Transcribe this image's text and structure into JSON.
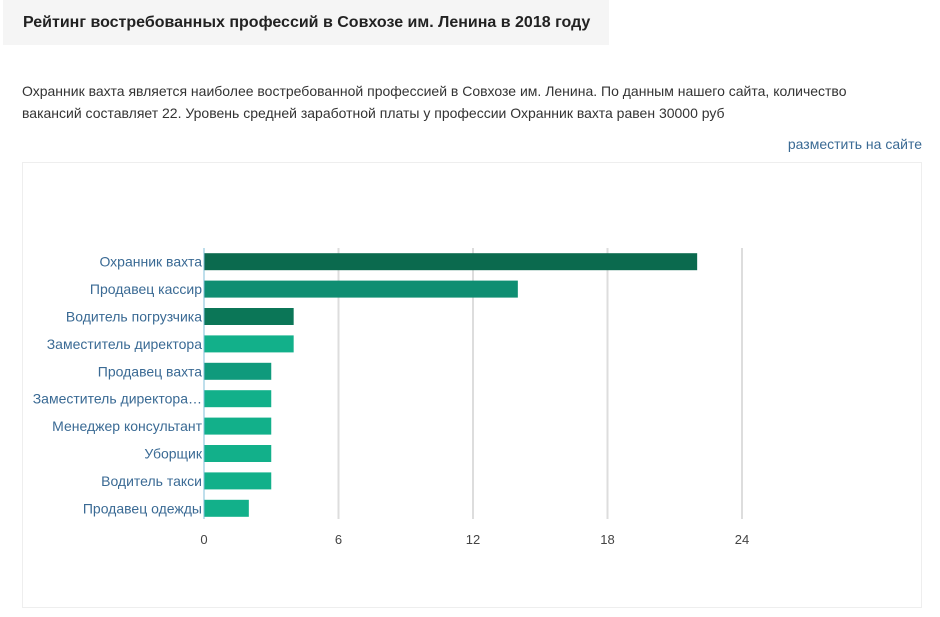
{
  "header": {
    "title": "Рейтинг востребованных профессий в Совхозе им. Ленина в 2018 году"
  },
  "intro": {
    "text": "Охранник вахта является наиболее востребованной профессией в Совхозе им. Ленина. По данным нашего сайта, количество вакансий составляет 22. Уровень средней заработной платы у профессии Охранник вахта равен 30000 руб"
  },
  "embed_link": {
    "label": "разместить на сайте"
  },
  "chart_data": {
    "type": "bar",
    "orientation": "horizontal",
    "categories": [
      "Охранник вахта",
      "Продавец кассир",
      "Водитель погрузчика",
      "Заместитель директора",
      "Продавец вахта",
      "Заместитель директора…",
      "Менеджер консультант",
      "Уборщик",
      "Водитель такси",
      "Продавец одежды"
    ],
    "values": [
      22,
      14,
      4,
      4,
      3,
      3,
      3,
      3,
      3,
      2
    ],
    "colors": [
      "#0b6a4e",
      "#0f8e72",
      "#0b7657",
      "#12b08a",
      "#0f9a7c",
      "#12b08a",
      "#12b08a",
      "#12b08a",
      "#12b08a",
      "#12b08a"
    ],
    "xlim": [
      0,
      24
    ],
    "xticks": [
      0,
      6,
      12,
      18,
      24
    ],
    "grid": true,
    "title": "",
    "xlabel": "",
    "ylabel": ""
  }
}
